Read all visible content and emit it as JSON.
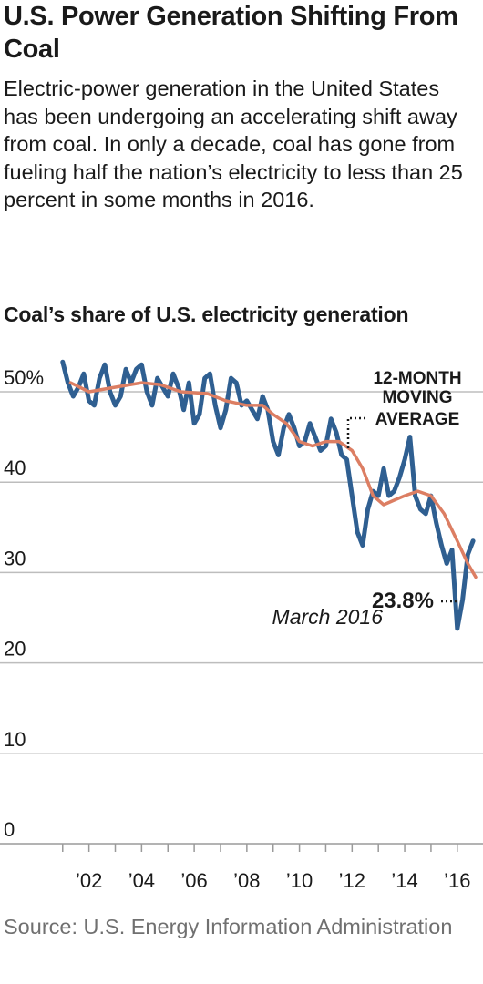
{
  "header": {
    "title": "U.S. Power Generation Shifting From Coal",
    "subtitle": "Electric-power generation in the United States has been undergoing an accelerating shift away from coal. In only a decade, coal has gone from fueling half the nation’s electricity to less than 25 percent in some months in 2016."
  },
  "source": "Source: U.S. Energy Information Administration",
  "colors": {
    "share_line": "#2f5f91",
    "average_line": "#dc7e63",
    "grid": "#bdbdbd"
  },
  "chart_data": {
    "type": "line",
    "title": "Coal’s share of U.S. electricity generation",
    "xlabel": "",
    "ylabel": "",
    "xlim": [
      2000.8,
      2016.7
    ],
    "ylim": [
      0,
      50
    ],
    "x_ticks": [
      {
        "value": 2002,
        "label": "’02"
      },
      {
        "value": 2004,
        "label": "’04"
      },
      {
        "value": 2006,
        "label": "’06"
      },
      {
        "value": 2008,
        "label": "’08"
      },
      {
        "value": 2010,
        "label": "’10"
      },
      {
        "value": 2012,
        "label": "’12"
      },
      {
        "value": 2014,
        "label": "’14"
      },
      {
        "value": 2016,
        "label": "’16"
      }
    ],
    "y_ticks": [
      {
        "value": 50,
        "label": "50%"
      },
      {
        "value": 40,
        "label": "40"
      },
      {
        "value": 30,
        "label": "30"
      },
      {
        "value": 20,
        "label": "20"
      },
      {
        "value": 10,
        "label": "10"
      },
      {
        "value": 0,
        "label": "0"
      }
    ],
    "grid": true,
    "series": [
      {
        "key": "share",
        "x": [
          2001.0,
          2001.2,
          2001.4,
          2001.6,
          2001.8,
          2002.0,
          2002.2,
          2002.4,
          2002.6,
          2002.8,
          2003.0,
          2003.2,
          2003.4,
          2003.6,
          2003.8,
          2004.0,
          2004.2,
          2004.4,
          2004.6,
          2004.8,
          2005.0,
          2005.2,
          2005.4,
          2005.6,
          2005.8,
          2006.0,
          2006.2,
          2006.4,
          2006.6,
          2006.8,
          2007.0,
          2007.2,
          2007.4,
          2007.6,
          2007.8,
          2008.0,
          2008.2,
          2008.4,
          2008.6,
          2008.8,
          2009.0,
          2009.2,
          2009.4,
          2009.6,
          2009.8,
          2010.0,
          2010.2,
          2010.4,
          2010.6,
          2010.8,
          2011.0,
          2011.2,
          2011.4,
          2011.6,
          2011.8,
          2012.0,
          2012.2,
          2012.4,
          2012.6,
          2012.8,
          2013.0,
          2013.2,
          2013.4,
          2013.6,
          2013.8,
          2014.0,
          2014.2,
          2014.4,
          2014.6,
          2014.8,
          2015.0,
          2015.2,
          2015.4,
          2015.6,
          2015.8,
          2016.0,
          2016.2,
          2016.4,
          2016.6
        ],
        "values": [
          53.3,
          51.0,
          49.5,
          50.5,
          52.0,
          49.0,
          48.5,
          51.5,
          53.0,
          50.0,
          48.5,
          49.5,
          52.5,
          51.0,
          52.5,
          53.0,
          50.0,
          48.5,
          51.5,
          50.5,
          49.5,
          52.0,
          50.5,
          48.0,
          51.0,
          46.5,
          47.5,
          51.5,
          52.0,
          48.5,
          46.0,
          48.0,
          51.5,
          51.0,
          48.5,
          49.0,
          48.0,
          47.0,
          49.5,
          48.0,
          44.5,
          43.0,
          46.0,
          47.5,
          46.0,
          44.0,
          44.5,
          46.5,
          45.0,
          43.5,
          44.0,
          47.0,
          45.5,
          43.0,
          42.5,
          38.5,
          34.5,
          33.0,
          37.0,
          39.0,
          38.5,
          41.5,
          38.5,
          39.0,
          40.5,
          42.5,
          45.0,
          38.5,
          37.0,
          36.5,
          38.5,
          35.5,
          33.0,
          31.0,
          32.5,
          23.8,
          27.0,
          32.0,
          33.5
        ]
      },
      {
        "key": "average",
        "x": [
          2001.3,
          2002.0,
          2003.0,
          2004.0,
          2004.7,
          2005.5,
          2006.5,
          2007.2,
          2008.0,
          2008.6,
          2009.0,
          2009.5,
          2010.0,
          2010.5,
          2011.0,
          2011.5,
          2012.0,
          2012.4,
          2012.8,
          2013.2,
          2013.6,
          2014.0,
          2014.5,
          2015.0,
          2015.5,
          2016.0,
          2016.4,
          2016.7
        ],
        "values": [
          51.0,
          50.0,
          50.5,
          51.0,
          50.8,
          50.0,
          49.8,
          49.0,
          48.5,
          48.5,
          47.5,
          46.5,
          44.5,
          44.0,
          44.5,
          44.5,
          43.5,
          41.5,
          38.5,
          37.5,
          38.0,
          38.5,
          39.0,
          38.5,
          36.5,
          33.5,
          31.0,
          29.5
        ]
      }
    ],
    "annotations": {
      "moving_average": [
        "12-MONTH",
        "MOVING",
        "AVERAGE"
      ],
      "callout_value": "23.8%",
      "callout_date": "March 2016"
    }
  }
}
